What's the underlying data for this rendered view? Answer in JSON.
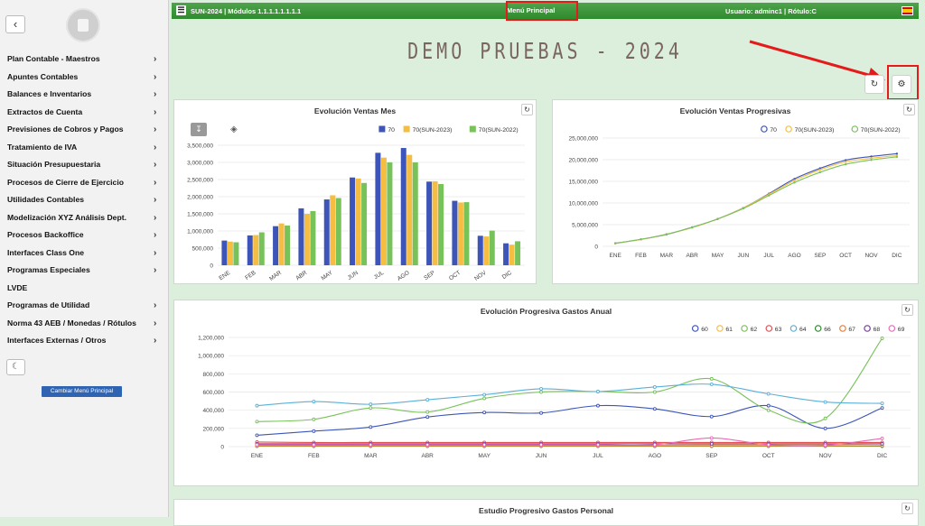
{
  "sidebar": {
    "back_icon": "chevron-left-icon",
    "items": [
      {
        "label": "Plan Contable - Maestros",
        "chevron": true
      },
      {
        "label": "Apuntes Contables",
        "chevron": true
      },
      {
        "label": "Balances e Inventarios",
        "chevron": true
      },
      {
        "label": "Extractos de Cuenta",
        "chevron": true
      },
      {
        "label": "Previsiones de Cobros y Pagos",
        "chevron": true
      },
      {
        "label": "Tratamiento de IVA",
        "chevron": true
      },
      {
        "label": "Situación Presupuestaria",
        "chevron": true
      },
      {
        "label": "Procesos de Cierre de Ejercicio",
        "chevron": true
      },
      {
        "label": "Utilidades Contables",
        "chevron": true
      },
      {
        "label": "Modelización XYZ Análisis Dept.",
        "chevron": true
      },
      {
        "label": "Procesos Backoffice",
        "chevron": true
      },
      {
        "label": "Interfaces Class One",
        "chevron": true
      },
      {
        "label": "Programas Especiales",
        "chevron": true
      },
      {
        "label": "LVDE",
        "chevron": false
      },
      {
        "label": "Programas de Utilidad",
        "chevron": true
      },
      {
        "label": "Norma 43 AEB / Monedas / Rótulos",
        "chevron": true
      },
      {
        "label": "Interfaces Externas / Otros",
        "chevron": true
      }
    ],
    "theme_icon": "moon-icon",
    "cambiar_label": "Cambiar Menú Principal"
  },
  "topbar": {
    "left": "SUN-2024 | Módulos 1.1.1.1.1.1.1.1",
    "center": "Menú Principal",
    "user": "Usuario: adminc1 | Rótulo:C"
  },
  "page": {
    "title": "DEMO PRUEBAS - 2024"
  },
  "colors": {
    "green_bar": "#3a953a",
    "annotation_red": "#e51b1b",
    "s70": "#3d55b8",
    "s2023": "#f5bd42",
    "s2022": "#78c25a"
  },
  "chart_data": [
    {
      "type": "bar",
      "title": "Evolución Ventas Mes",
      "categories": [
        "ENE",
        "FEB",
        "MAR",
        "ABR",
        "MAY",
        "JUN",
        "JUL",
        "AGO",
        "SEP",
        "OCT",
        "NOV",
        "DIC"
      ],
      "yticks": [
        "0",
        "500,000",
        "1,000,000",
        "1,500,000",
        "2,000,000",
        "2,500,000",
        "3,000,000",
        "3,500,000"
      ],
      "ylim": [
        0,
        3500000
      ],
      "legend_position": "top-right",
      "series": [
        {
          "name": "70",
          "values": [
            720000,
            870000,
            1140000,
            1660000,
            1920000,
            2560000,
            3280000,
            3420000,
            2440000,
            1880000,
            860000,
            640000
          ]
        },
        {
          "name": "70(SUN-2023)",
          "values": [
            690000,
            880000,
            1220000,
            1500000,
            2040000,
            2530000,
            3140000,
            3220000,
            2450000,
            1830000,
            840000,
            600000
          ]
        },
        {
          "name": "70(SUN-2022)",
          "values": [
            670000,
            960000,
            1160000,
            1580000,
            1960000,
            2400000,
            3000000,
            3000000,
            2370000,
            1840000,
            1010000,
            700000
          ]
        }
      ]
    },
    {
      "type": "line",
      "title": "Evolución Ventas Progresivas",
      "categories": [
        "ENE",
        "FEB",
        "MAR",
        "ABR",
        "MAY",
        "JUN",
        "JUL",
        "AGO",
        "SEP",
        "OCT",
        "NOV",
        "DIC"
      ],
      "yticks": [
        "0",
        "5,000,000",
        "10,000,000",
        "15,000,000",
        "20,000,000",
        "25,000,000"
      ],
      "ylim": [
        0,
        25000000
      ],
      "legend_position": "top-right",
      "series": [
        {
          "name": "70",
          "values": [
            720000,
            1590000,
            2730000,
            4390000,
            6310000,
            8870000,
            12150000,
            15570000,
            18010000,
            19890000,
            20750000,
            21390000
          ]
        },
        {
          "name": "70(SUN-2023)",
          "values": [
            690000,
            1570000,
            2790000,
            4290000,
            6330000,
            8860000,
            12000000,
            15220000,
            17670000,
            19500000,
            20340000,
            20940000
          ]
        },
        {
          "name": "70(SUN-2022)",
          "values": [
            670000,
            1630000,
            2790000,
            4370000,
            6330000,
            8730000,
            11730000,
            14730000,
            17100000,
            18940000,
            19950000,
            20650000
          ]
        }
      ]
    },
    {
      "type": "line",
      "title": "Evolución Progresiva Gastos Anual",
      "categories": [
        "ENE",
        "FEB",
        "MAR",
        "ABR",
        "MAY",
        "JUN",
        "JUL",
        "AGO",
        "SEP",
        "OCT",
        "NOV",
        "DIC"
      ],
      "yticks": [
        "0",
        "200,000",
        "400,000",
        "600,000",
        "800,000",
        "1,000,000",
        "1,200,000"
      ],
      "ylim": [
        0,
        1200000
      ],
      "legend_position": "top-right",
      "series": [
        {
          "name": "60",
          "color": "#3d55b8",
          "values": [
            125000,
            170000,
            215000,
            325000,
            375000,
            370000,
            450000,
            415000,
            330000,
            450000,
            200000,
            425000
          ]
        },
        {
          "name": "61",
          "color": "#f5bd42",
          "values": [
            10000,
            10000,
            10000,
            10000,
            10000,
            10000,
            15000,
            15000,
            20000,
            20000,
            20000,
            30000
          ]
        },
        {
          "name": "62",
          "color": "#78c25a",
          "values": [
            275000,
            300000,
            425000,
            380000,
            530000,
            600000,
            605000,
            600000,
            745000,
            400000,
            310000,
            1190000
          ]
        },
        {
          "name": "63",
          "color": "#e05050",
          "values": [
            50000,
            45000,
            45000,
            45000,
            45000,
            45000,
            45000,
            45000,
            45000,
            45000,
            45000,
            45000
          ]
        },
        {
          "name": "64",
          "color": "#5ab0d8",
          "values": [
            450000,
            495000,
            465000,
            515000,
            570000,
            635000,
            605000,
            655000,
            685000,
            580000,
            490000,
            475000
          ]
        },
        {
          "name": "66",
          "color": "#2f8a2d",
          "values": [
            5000,
            5000,
            5000,
            5000,
            5000,
            5000,
            5000,
            5000,
            5000,
            5000,
            5000,
            5000
          ]
        },
        {
          "name": "67",
          "color": "#f07a30",
          "values": [
            8000,
            8000,
            8000,
            8000,
            8000,
            8000,
            8000,
            8000,
            8000,
            8000,
            8000,
            10000
          ]
        },
        {
          "name": "68",
          "color": "#7a3a9a",
          "values": [
            30000,
            30000,
            30000,
            30000,
            30000,
            30000,
            30000,
            30000,
            30000,
            30000,
            30000,
            30000
          ]
        },
        {
          "name": "69",
          "color": "#e86ab8",
          "values": [
            20000,
            20000,
            20000,
            20000,
            20000,
            20000,
            20000,
            20000,
            95000,
            20000,
            15000,
            90000
          ]
        }
      ]
    },
    {
      "type": "line",
      "title": "Estudio Progresivo Gastos Personal"
    }
  ]
}
